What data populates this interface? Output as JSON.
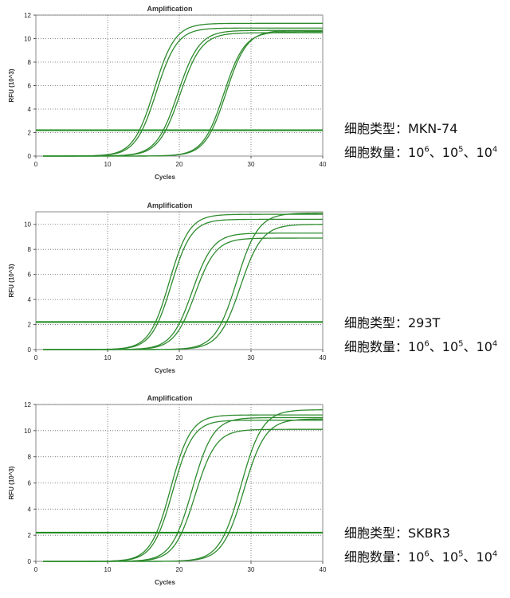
{
  "panels": [
    {
      "caption_type": "细胞类型：MKN-74",
      "caption_qty_prefix": "细胞数量：",
      "caption_qty_values": [
        {
          "base": "10",
          "exp": "6"
        },
        {
          "base": "10",
          "exp": "5"
        },
        {
          "base": "10",
          "exp": "4"
        }
      ],
      "caption_qty_sep": "、"
    },
    {
      "caption_type": "细胞类型：293T",
      "caption_qty_prefix": "细胞数量：",
      "caption_qty_values": [
        {
          "base": "10",
          "exp": "6"
        },
        {
          "base": "10",
          "exp": "5"
        },
        {
          "base": "10",
          "exp": "4"
        }
      ],
      "caption_qty_sep": "、"
    },
    {
      "caption_type": "细胞类型：SKBR3",
      "caption_qty_prefix": "细胞数量：",
      "caption_qty_values": [
        {
          "base": "10",
          "exp": "6"
        },
        {
          "base": "10",
          "exp": "5"
        },
        {
          "base": "10",
          "exp": "4"
        }
      ],
      "caption_qty_sep": "、"
    }
  ],
  "colors": {
    "curve": "#2e8b2e",
    "threshold": "#1a8a1a",
    "grid": "#666666",
    "frame": "#888888"
  },
  "chart_data": [
    {
      "type": "line",
      "title": "Amplification",
      "xlabel": "Cycles",
      "ylabel": "RFU (10^3)",
      "xlim": [
        0,
        40
      ],
      "ylim": [
        0,
        12
      ],
      "xticks": [
        0,
        10,
        20,
        30,
        40
      ],
      "yticks": [
        0,
        2,
        4,
        6,
        8,
        10,
        12
      ],
      "grid": true,
      "threshold": 2.2,
      "series": [
        {
          "midpoint": 16.5,
          "plateau": 11.3,
          "slope": 1.45
        },
        {
          "midpoint": 16.8,
          "plateau": 10.9,
          "slope": 1.45
        },
        {
          "midpoint": 19.8,
          "plateau": 10.7,
          "slope": 1.5
        },
        {
          "midpoint": 20.1,
          "plateau": 10.5,
          "slope": 1.5
        },
        {
          "midpoint": 26.2,
          "plateau": 10.6,
          "slope": 1.45
        },
        {
          "midpoint": 26.5,
          "plateau": 10.7,
          "slope": 1.45
        }
      ]
    },
    {
      "type": "line",
      "title": "Amplification",
      "xlabel": "Cycles",
      "ylabel": "RFU (10^3)",
      "xlim": [
        0,
        40
      ],
      "ylim": [
        0,
        11
      ],
      "xticks": [
        0,
        10,
        20,
        30,
        40
      ],
      "yticks": [
        0,
        2,
        4,
        6,
        8,
        10
      ],
      "grid": true,
      "threshold": 2.2,
      "series": [
        {
          "midpoint": 18.6,
          "plateau": 10.8,
          "slope": 1.4
        },
        {
          "midpoint": 18.9,
          "plateau": 10.4,
          "slope": 1.4
        },
        {
          "midpoint": 21.8,
          "plateau": 9.3,
          "slope": 1.45
        },
        {
          "midpoint": 22.2,
          "plateau": 8.9,
          "slope": 1.45
        },
        {
          "midpoint": 28.0,
          "plateau": 10.9,
          "slope": 1.5
        },
        {
          "midpoint": 28.5,
          "plateau": 10.0,
          "slope": 1.5
        }
      ]
    },
    {
      "type": "line",
      "title": "Amplification",
      "xlabel": "Cycles",
      "ylabel": "RFU (10^3)",
      "xlim": [
        0,
        40
      ],
      "ylim": [
        0,
        12
      ],
      "xticks": [
        0,
        10,
        20,
        30,
        40
      ],
      "yticks": [
        0,
        2,
        4,
        6,
        8,
        10,
        12
      ],
      "grid": true,
      "threshold": 2.2,
      "series": [
        {
          "midpoint": 18.8,
          "plateau": 11.2,
          "slope": 1.4
        },
        {
          "midpoint": 19.1,
          "plateau": 10.8,
          "slope": 1.4
        },
        {
          "midpoint": 21.8,
          "plateau": 11.0,
          "slope": 1.45
        },
        {
          "midpoint": 22.2,
          "plateau": 10.1,
          "slope": 1.45
        },
        {
          "midpoint": 28.6,
          "plateau": 11.6,
          "slope": 1.5
        },
        {
          "midpoint": 29.0,
          "plateau": 10.9,
          "slope": 1.5
        }
      ]
    }
  ]
}
